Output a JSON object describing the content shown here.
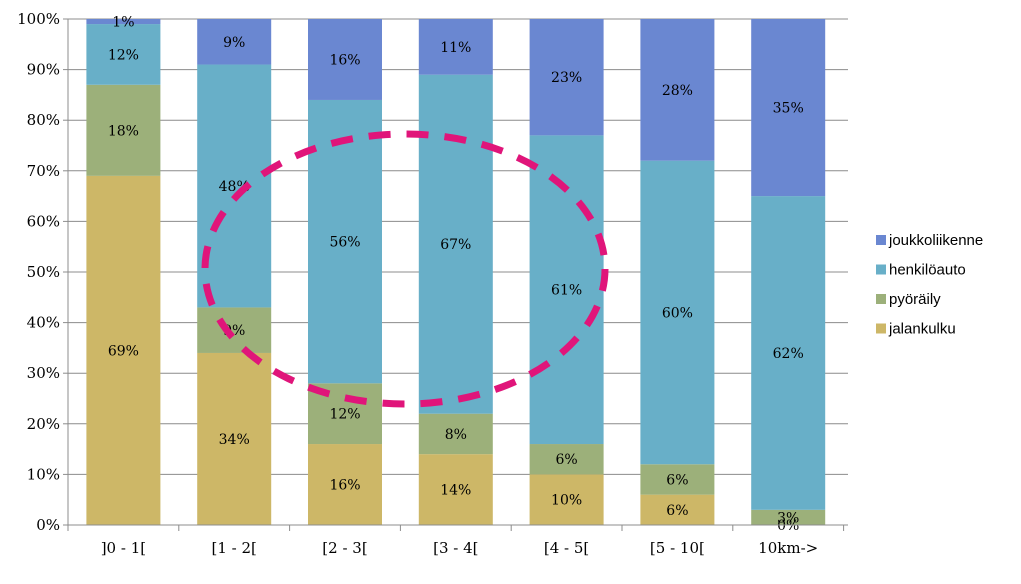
{
  "chart_data": {
    "type": "bar",
    "stacked": "percent",
    "categories": [
      "]0 - 1[",
      "[1 - 2[",
      "[2 - 3[",
      "[3 - 4[",
      "[4 - 5[",
      "[5 - 10[",
      "10km->"
    ],
    "series": [
      {
        "name": "jalankulku",
        "color": "#cdb767",
        "values": [
          69,
          34,
          16,
          14,
          10,
          6,
          0
        ],
        "labels": [
          "69%",
          "34%",
          "16%",
          "14%",
          "10%",
          "6%",
          "0%"
        ]
      },
      {
        "name": "pyöräily",
        "color": "#9cb07a",
        "values": [
          18,
          9,
          12,
          8,
          6,
          6,
          3
        ],
        "labels": [
          "18%",
          "9%",
          "12%",
          "8%",
          "6%",
          "6%",
          "3%"
        ]
      },
      {
        "name": "henkilöauto",
        "color": "#68afc8",
        "values": [
          12,
          48,
          56,
          67,
          61,
          60,
          62
        ],
        "labels": [
          "12%",
          "48%",
          "56%",
          "67%",
          "61%",
          "60%",
          "62%"
        ]
      },
      {
        "name": "joukkoliikenne",
        "color": "#6a87d1",
        "values": [
          1,
          9,
          16,
          11,
          23,
          28,
          35
        ],
        "labels": [
          "1%",
          "9%",
          "16%",
          "11%",
          "23%",
          "28%",
          "35%"
        ]
      }
    ],
    "y_ticks": [
      "0%",
      "10%",
      "20%",
      "30%",
      "40%",
      "50%",
      "60%",
      "70%",
      "80%",
      "90%",
      "100%"
    ],
    "ylim": [
      0,
      100
    ],
    "grid": true,
    "legend_position": "right",
    "annotation": {
      "shape": "dashed-ellipse",
      "color": "#e0157a"
    }
  }
}
